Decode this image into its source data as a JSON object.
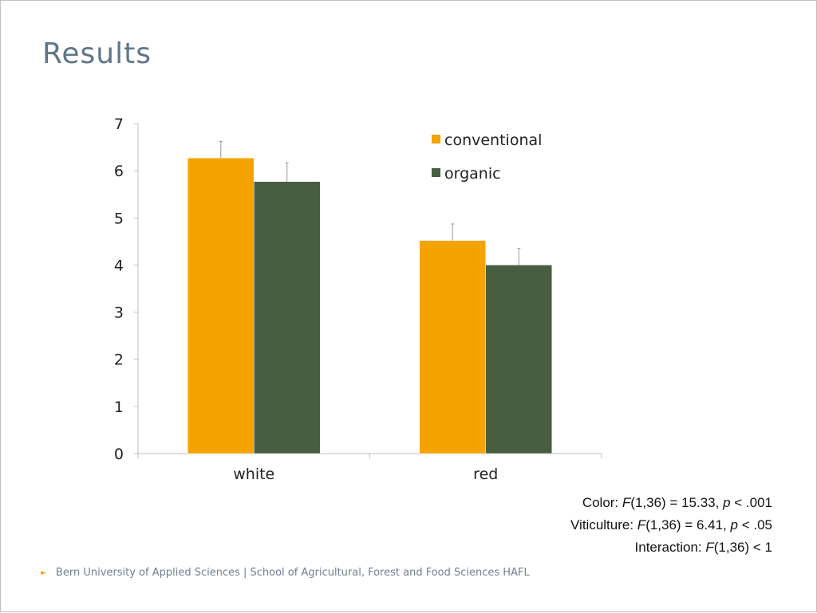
{
  "slide": {
    "title": "Results",
    "footer": "Bern University of Applied Sciences | School of Agricultural, Forest and Food Sciences HAFL"
  },
  "stats": [
    {
      "label": "Color: ",
      "f": "F",
      "rest1": "(1,36) = 15.33, ",
      "p": "p",
      "rest2": " < .001"
    },
    {
      "label": "Viticulture: ",
      "f": "F",
      "rest1": "(1,36) = 6.41, ",
      "p": "p",
      "rest2": " < .05"
    },
    {
      "label": "Interaction: ",
      "f": "F",
      "rest1": "(1,36) < 1",
      "p": "",
      "rest2": ""
    }
  ],
  "chart_data": {
    "type": "bar",
    "categories": [
      "white",
      "red"
    ],
    "series": [
      {
        "name": "conventional",
        "values": [
          6.27,
          4.52
        ],
        "errors": [
          0.35,
          0.35
        ],
        "color": "#f5a300"
      },
      {
        "name": "organic",
        "values": [
          5.77,
          4.0
        ],
        "errors": [
          0.4,
          0.35
        ],
        "color": "#475e3f"
      }
    ],
    "ylim": [
      0,
      7
    ],
    "yticks": [
      0,
      1,
      2,
      3,
      4,
      5,
      6,
      7
    ],
    "legend_position": "top-right",
    "grid": false
  }
}
